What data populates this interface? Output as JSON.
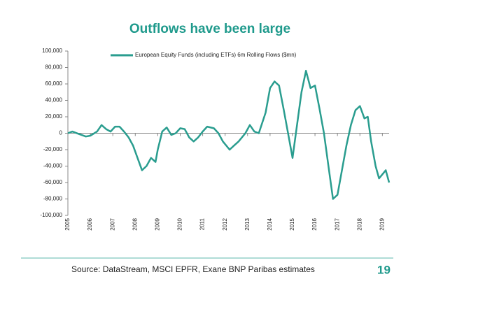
{
  "chart_data": {
    "type": "line",
    "title": "Outflows have been large",
    "source": "Source: DataStream, MSCI EPFR, Exane BNP Paribas estimates",
    "page_number": "19",
    "x": [
      2005.0,
      2005.2,
      2005.5,
      2005.8,
      2006.0,
      2006.3,
      2006.5,
      2006.7,
      2006.9,
      2007.1,
      2007.3,
      2007.5,
      2007.7,
      2007.9,
      2008.1,
      2008.3,
      2008.5,
      2008.7,
      2008.9,
      2009.0,
      2009.2,
      2009.4,
      2009.6,
      2009.8,
      2010.0,
      2010.2,
      2010.4,
      2010.6,
      2010.8,
      2011.0,
      2011.2,
      2011.5,
      2011.7,
      2011.9,
      2012.2,
      2012.4,
      2012.6,
      2012.9,
      2013.1,
      2013.3,
      2013.5,
      2013.8,
      2014.0,
      2014.2,
      2014.4,
      2014.6,
      2014.8,
      2015.0,
      2015.2,
      2015.4,
      2015.6,
      2015.8,
      2016.0,
      2016.2,
      2016.4,
      2016.6,
      2016.8,
      2017.0,
      2017.2,
      2017.4,
      2017.6,
      2017.8,
      2018.0,
      2018.2,
      2018.35,
      2018.5,
      2018.7,
      2018.85,
      2019.0,
      2019.15,
      2019.3
    ],
    "series": [
      {
        "name": "European Equity Funds (including ETFs) 6m Rolling Flows ($mn)",
        "color": "#2a9d8f",
        "values": [
          0,
          2000,
          -1000,
          -4000,
          -3000,
          2000,
          10000,
          5000,
          2000,
          8000,
          8000,
          2000,
          -5000,
          -15000,
          -30000,
          -45000,
          -40000,
          -30000,
          -35000,
          -20000,
          2000,
          7000,
          -2000,
          0,
          6000,
          5000,
          -5000,
          -10000,
          -5000,
          2000,
          8000,
          6000,
          0,
          -10000,
          -20000,
          -15000,
          -10000,
          0,
          10000,
          2000,
          0,
          25000,
          55000,
          63000,
          58000,
          30000,
          0,
          -30000,
          10000,
          50000,
          76000,
          55000,
          58000,
          30000,
          0,
          -40000,
          -80000,
          -75000,
          -45000,
          -15000,
          10000,
          28000,
          33000,
          18000,
          20000,
          -10000,
          -40000,
          -55000,
          -50000,
          -45000,
          -60000
        ]
      }
    ],
    "xlim": [
      2005,
      2019.3
    ],
    "xticks": [
      2005,
      2006,
      2007,
      2008,
      2009,
      2010,
      2011,
      2012,
      2013,
      2014,
      2015,
      2016,
      2017,
      2018,
      2019
    ],
    "ylim": [
      -100000,
      100000
    ],
    "yticks": [
      {
        "value": 100000,
        "label": "100,000"
      },
      {
        "value": 80000,
        "label": "80,000"
      },
      {
        "value": 60000,
        "label": "60,000"
      },
      {
        "value": 40000,
        "label": "40,000"
      },
      {
        "value": 20000,
        "label": "20,000"
      },
      0,
      {
        "value": -20000,
        "label": "-20,000"
      },
      {
        "value": -40000,
        "label": "-40,000"
      },
      {
        "value": -60000,
        "label": "-60,000"
      },
      {
        "value": -80000,
        "label": "-80,000"
      },
      {
        "value": -100000,
        "label": "-100,000"
      }
    ],
    "legend": "top"
  }
}
